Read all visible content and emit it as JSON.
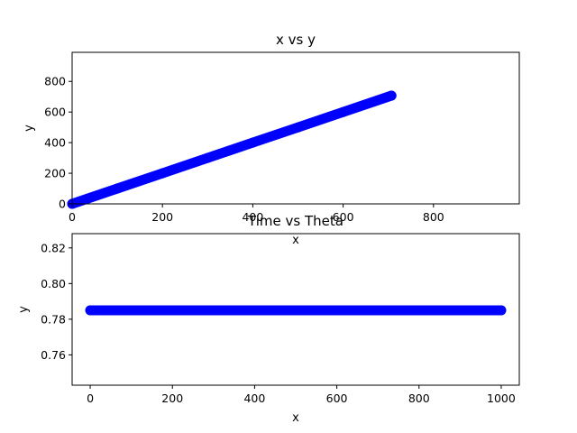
{
  "chart_data": [
    {
      "type": "scatter",
      "title": "x vs y",
      "xlabel": "x",
      "ylabel": "y",
      "xlim": [
        0,
        990
      ],
      "ylim": [
        0,
        990
      ],
      "xticks": [
        0,
        200,
        400,
        600,
        800
      ],
      "yticks": [
        0,
        200,
        400,
        600,
        800
      ],
      "xtick_labels": [
        "0",
        "200",
        "400",
        "600",
        "800"
      ],
      "ytick_labels": [
        "0",
        "200",
        "400",
        "600",
        "800"
      ],
      "grid": false,
      "color": "#0000ff",
      "series": [
        {
          "x": [
            0,
            100,
            200,
            300,
            400,
            500,
            600,
            707
          ],
          "y": [
            0,
            100,
            200,
            300,
            400,
            500,
            600,
            707
          ]
        }
      ]
    },
    {
      "type": "scatter",
      "title": "Time vs Theta",
      "xlabel": "x",
      "ylabel": "y",
      "xlim": [
        -44,
        1044
      ],
      "ylim": [
        0.743,
        0.828
      ],
      "xticks": [
        0,
        200,
        400,
        600,
        800,
        1000
      ],
      "yticks": [
        0.76,
        0.78,
        0.8,
        0.82
      ],
      "xtick_labels": [
        "0",
        "200",
        "400",
        "600",
        "800",
        "1000"
      ],
      "ytick_labels": [
        "0.76",
        "0.78",
        "0.80",
        "0.82"
      ],
      "grid": false,
      "color": "#0000ff",
      "series": [
        {
          "x": [
            0,
            100,
            200,
            300,
            400,
            500,
            600,
            700,
            800,
            900,
            1000
          ],
          "y": [
            0.785,
            0.785,
            0.785,
            0.785,
            0.785,
            0.785,
            0.785,
            0.785,
            0.785,
            0.785,
            0.785
          ]
        }
      ]
    }
  ]
}
